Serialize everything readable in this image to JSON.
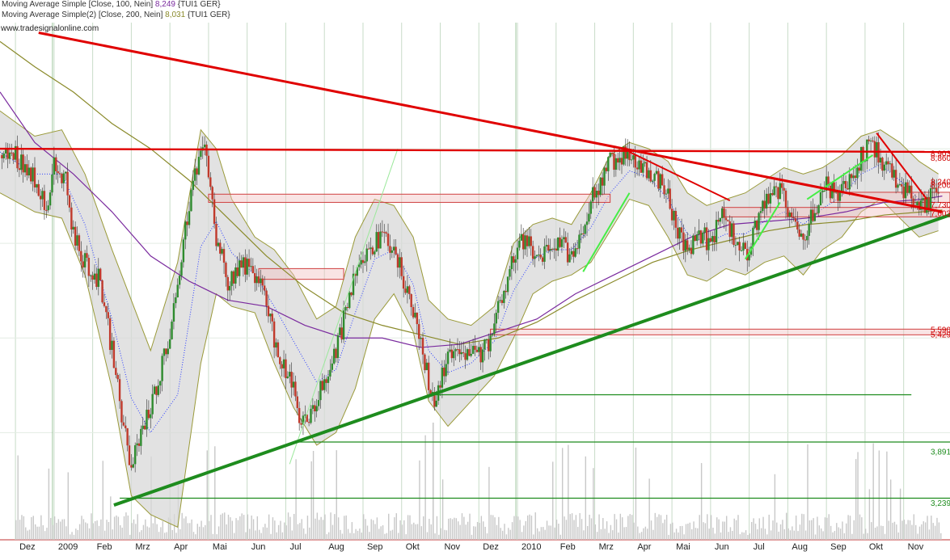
{
  "legend": {
    "ma1_prefix": "Moving Average Simple [Close, 100, Nein] ",
    "ma1_value": "8,249",
    "ma1_suffix": " {TUI1 GER}",
    "ma2_prefix": "Moving Average Simple(2) [Close, 200, Nein] ",
    "ma2_value": "8,031",
    "ma2_suffix": " {TUI1 GER}"
  },
  "source": "www.tradesignalonline.com",
  "colors": {
    "background": "#ffffff",
    "grid": "#c8dcc8",
    "candle_up": "#2e8b2e",
    "candle_down": "#c0392b",
    "bollinger_band": "#9a9a3a",
    "bollinger_fill": "#d8d8d8",
    "ma100": "#7a2a9e",
    "ma200": "#8a8a2a",
    "resistance": "#e00000",
    "support": "#1e8c1e",
    "volume": "#c8c8c8"
  },
  "chart_data": {
    "type": "candlestick",
    "symbol": "TUI1 GER",
    "x_tick_labels": [
      "Dez",
      "2009",
      "Feb",
      "Mrz",
      "Apr",
      "Mai",
      "Jun",
      "Jul",
      "Aug",
      "Sep",
      "Okt",
      "Nov",
      "Dez",
      "2010",
      "Feb",
      "Mrz",
      "Apr",
      "Mai",
      "Jun",
      "Jul",
      "Aug",
      "Sep",
      "Okt",
      "Nov"
    ],
    "x_tick_months": [
      0,
      1,
      2,
      3,
      4,
      5,
      6,
      7,
      8,
      9,
      10,
      11,
      12,
      13,
      14,
      15,
      16,
      17,
      18,
      19,
      20,
      21,
      22,
      23
    ],
    "x_range": [
      -0.4,
      24.2
    ],
    "ylim": [
      2.8,
      11.0
    ],
    "grid": true,
    "price_close": [
      [
        0.0,
        8.9
      ],
      [
        0.5,
        8.55
      ],
      [
        0.8,
        8.1
      ],
      [
        1.0,
        8.7
      ],
      [
        1.3,
        8.5
      ],
      [
        1.5,
        7.6
      ],
      [
        1.8,
        7.2
      ],
      [
        2.2,
        6.9
      ],
      [
        2.5,
        5.8
      ],
      [
        2.8,
        4.6
      ],
      [
        3.0,
        3.9
      ],
      [
        3.2,
        4.4
      ],
      [
        3.5,
        4.9
      ],
      [
        3.8,
        5.6
      ],
      [
        4.1,
        6.4
      ],
      [
        4.4,
        7.8
      ],
      [
        4.7,
        8.7
      ],
      [
        4.95,
        8.95
      ],
      [
        5.2,
        7.6
      ],
      [
        5.5,
        6.9
      ],
      [
        5.9,
        7.2
      ],
      [
        6.2,
        7.0
      ],
      [
        6.5,
        6.6
      ],
      [
        6.8,
        5.7
      ],
      [
        7.1,
        5.4
      ],
      [
        7.4,
        4.6
      ],
      [
        7.7,
        4.85
      ],
      [
        8.0,
        5.3
      ],
      [
        8.3,
        5.8
      ],
      [
        8.6,
        6.5
      ],
      [
        8.9,
        7.3
      ],
      [
        9.3,
        7.5
      ],
      [
        9.6,
        7.6
      ],
      [
        9.9,
        7.2
      ],
      [
        10.2,
        6.7
      ],
      [
        10.5,
        5.9
      ],
      [
        10.8,
        5.0
      ],
      [
        11.1,
        5.5
      ],
      [
        11.4,
        5.9
      ],
      [
        11.7,
        5.8
      ],
      [
        12.0,
        5.7
      ],
      [
        12.3,
        6.0
      ],
      [
        12.6,
        6.7
      ],
      [
        12.9,
        7.3
      ],
      [
        13.2,
        7.6
      ],
      [
        13.5,
        7.2
      ],
      [
        13.8,
        7.4
      ],
      [
        14.1,
        7.5
      ],
      [
        14.4,
        7.3
      ],
      [
        14.7,
        7.8
      ],
      [
        15.0,
        8.3
      ],
      [
        15.3,
        8.7
      ],
      [
        15.6,
        8.9
      ],
      [
        15.9,
        8.85
      ],
      [
        16.2,
        8.75
      ],
      [
        16.5,
        8.6
      ],
      [
        16.8,
        8.4
      ],
      [
        17.1,
        7.8
      ],
      [
        17.4,
        7.35
      ],
      [
        17.7,
        7.7
      ],
      [
        18.0,
        7.5
      ],
      [
        18.3,
        7.9
      ],
      [
        18.6,
        7.6
      ],
      [
        18.9,
        7.3
      ],
      [
        19.2,
        7.8
      ],
      [
        19.5,
        8.2
      ],
      [
        19.8,
        8.35
      ],
      [
        20.1,
        7.9
      ],
      [
        20.4,
        7.6
      ],
      [
        20.7,
        8.1
      ],
      [
        21.0,
        8.4
      ],
      [
        21.3,
        8.2
      ],
      [
        21.6,
        8.45
      ],
      [
        21.9,
        8.9
      ],
      [
        22.2,
        9.05
      ],
      [
        22.5,
        8.75
      ],
      [
        22.8,
        8.5
      ],
      [
        23.1,
        8.3
      ],
      [
        23.4,
        8.0
      ],
      [
        23.6,
        8.1
      ],
      [
        23.8,
        8.3
      ]
    ],
    "indicators": {
      "ma100": {
        "name": "Moving Average Simple [Close, 100, Nein]",
        "last": 8.249,
        "points": [
          [
            -0.4,
            9.9
          ],
          [
            0.5,
            9.1
          ],
          [
            1.5,
            8.6
          ],
          [
            2.5,
            8.0
          ],
          [
            3.5,
            7.3
          ],
          [
            4.5,
            6.9
          ],
          [
            5.5,
            6.6
          ],
          [
            6.5,
            6.5
          ],
          [
            7.5,
            6.2
          ],
          [
            8.5,
            6.0
          ],
          [
            9.5,
            6.0
          ],
          [
            10.5,
            5.85
          ],
          [
            11.5,
            5.9
          ],
          [
            12.5,
            6.1
          ],
          [
            13.5,
            6.3
          ],
          [
            14.5,
            6.7
          ],
          [
            15.5,
            7.0
          ],
          [
            16.5,
            7.3
          ],
          [
            17.5,
            7.6
          ],
          [
            18.5,
            7.8
          ],
          [
            19.5,
            7.85
          ],
          [
            20.5,
            7.9
          ],
          [
            21.5,
            8.0
          ],
          [
            22.5,
            8.15
          ],
          [
            23.5,
            8.2
          ],
          [
            24.0,
            8.25
          ]
        ]
      },
      "ma200": {
        "name": "Moving Average Simple(2) [Close, 200, Nein]",
        "last": 8.031,
        "points": [
          [
            -0.4,
            10.7
          ],
          [
            0.5,
            10.3
          ],
          [
            1.5,
            9.9
          ],
          [
            2.5,
            9.4
          ],
          [
            3.5,
            9.0
          ],
          [
            4.5,
            8.5
          ],
          [
            5.5,
            7.9
          ],
          [
            6.5,
            7.3
          ],
          [
            7.5,
            6.8
          ],
          [
            8.5,
            6.4
          ],
          [
            9.5,
            6.2
          ],
          [
            10.5,
            6.05
          ],
          [
            11.5,
            5.9
          ],
          [
            12.5,
            6.0
          ],
          [
            13.5,
            6.25
          ],
          [
            14.5,
            6.6
          ],
          [
            15.5,
            6.9
          ],
          [
            16.5,
            7.2
          ],
          [
            17.5,
            7.4
          ],
          [
            18.5,
            7.55
          ],
          [
            19.5,
            7.7
          ],
          [
            20.5,
            7.8
          ],
          [
            21.5,
            7.85
          ],
          [
            22.5,
            7.95
          ],
          [
            23.5,
            8.0
          ],
          [
            24.0,
            8.03
          ]
        ]
      }
    },
    "bollinger_upper": [
      [
        -0.4,
        9.6
      ],
      [
        0.5,
        9.2
      ],
      [
        1.2,
        9.3
      ],
      [
        1.8,
        8.6
      ],
      [
        2.5,
        7.4
      ],
      [
        3.0,
        6.6
      ],
      [
        3.5,
        5.8
      ],
      [
        4.2,
        7.2
      ],
      [
        4.8,
        9.3
      ],
      [
        5.2,
        9.0
      ],
      [
        5.6,
        8.2
      ],
      [
        6.2,
        7.6
      ],
      [
        6.7,
        7.4
      ],
      [
        7.2,
        7.0
      ],
      [
        7.8,
        6.3
      ],
      [
        8.3,
        6.5
      ],
      [
        8.8,
        7.6
      ],
      [
        9.3,
        8.2
      ],
      [
        9.8,
        8.1
      ],
      [
        10.3,
        7.6
      ],
      [
        10.7,
        6.6
      ],
      [
        11.2,
        6.3
      ],
      [
        11.8,
        6.2
      ],
      [
        12.4,
        6.5
      ],
      [
        12.9,
        7.5
      ],
      [
        13.4,
        7.8
      ],
      [
        13.9,
        7.9
      ],
      [
        14.4,
        7.8
      ],
      [
        14.9,
        8.3
      ],
      [
        15.4,
        8.9
      ],
      [
        15.9,
        9.1
      ],
      [
        16.4,
        9.0
      ],
      [
        16.9,
        8.8
      ],
      [
        17.4,
        8.3
      ],
      [
        17.9,
        8.1
      ],
      [
        18.4,
        8.2
      ],
      [
        18.9,
        8.3
      ],
      [
        19.4,
        8.5
      ],
      [
        19.9,
        8.7
      ],
      [
        20.4,
        8.6
      ],
      [
        20.9,
        8.7
      ],
      [
        21.4,
        8.9
      ],
      [
        21.9,
        9.2
      ],
      [
        22.4,
        9.3
      ],
      [
        22.9,
        9.1
      ],
      [
        23.4,
        8.8
      ],
      [
        23.9,
        8.6
      ]
    ],
    "bollinger_lower": [
      [
        -0.4,
        8.3
      ],
      [
        0.5,
        8.0
      ],
      [
        1.2,
        7.9
      ],
      [
        1.8,
        7.0
      ],
      [
        2.5,
        5.2
      ],
      [
        3.0,
        3.5
      ],
      [
        3.5,
        3.2
      ],
      [
        4.2,
        3.0
      ],
      [
        4.8,
        5.6
      ],
      [
        5.2,
        6.7
      ],
      [
        5.6,
        6.5
      ],
      [
        6.2,
        6.4
      ],
      [
        6.7,
        5.6
      ],
      [
        7.2,
        4.9
      ],
      [
        7.8,
        4.3
      ],
      [
        8.3,
        4.5
      ],
      [
        8.8,
        5.2
      ],
      [
        9.3,
        6.3
      ],
      [
        9.8,
        6.7
      ],
      [
        10.3,
        6.1
      ],
      [
        10.7,
        5.0
      ],
      [
        11.2,
        4.6
      ],
      [
        11.8,
        5.0
      ],
      [
        12.4,
        5.4
      ],
      [
        12.9,
        6.0
      ],
      [
        13.4,
        6.7
      ],
      [
        13.9,
        6.9
      ],
      [
        14.4,
        7.0
      ],
      [
        14.9,
        7.2
      ],
      [
        15.4,
        7.7
      ],
      [
        15.9,
        8.2
      ],
      [
        16.4,
        8.1
      ],
      [
        16.9,
        7.6
      ],
      [
        17.4,
        7.0
      ],
      [
        17.9,
        6.9
      ],
      [
        18.4,
        7.1
      ],
      [
        18.9,
        7.0
      ],
      [
        19.4,
        7.2
      ],
      [
        19.9,
        7.3
      ],
      [
        20.4,
        7.0
      ],
      [
        20.9,
        7.4
      ],
      [
        21.4,
        7.6
      ],
      [
        21.9,
        8.0
      ],
      [
        22.4,
        8.2
      ],
      [
        22.9,
        7.9
      ],
      [
        23.4,
        7.6
      ],
      [
        23.9,
        7.7
      ]
    ],
    "lines": {
      "resistance_downtrend": [
        [
          0.6,
          10.84
        ],
        [
          24.0,
          8.0
        ]
      ],
      "support_uptrend": [
        [
          2.55,
          3.35
        ],
        [
          24.2,
          7.95
        ]
      ],
      "resistance_horizontal": [
        [
          -0.4,
          9.0
        ],
        [
          24.2,
          8.95
        ]
      ],
      "minor_downtrend_1": [
        [
          15.9,
          8.95
        ],
        [
          18.5,
          8.18
        ]
      ],
      "minor_downtrend_2": [
        [
          22.3,
          9.25
        ],
        [
          23.6,
          8.2
        ]
      ],
      "green_channel_1": [
        [
          7.1,
          4.0
        ],
        [
          9.9,
          9.0
        ]
      ],
      "green_channel_2": [
        [
          14.7,
          7.05
        ],
        [
          15.9,
          8.3
        ]
      ],
      "green_channel_3": [
        [
          18.9,
          7.25
        ],
        [
          19.8,
          8.15
        ]
      ],
      "green_channel_4": [
        [
          20.5,
          8.2
        ],
        [
          22.2,
          8.9
        ]
      ],
      "support_horizontal_1": [
        [
          10.9,
          5.1
        ],
        [
          23.2,
          5.1
        ]
      ],
      "support_horizontal_2": [
        [
          7.2,
          4.35
        ],
        [
          24.2,
          4.35
        ]
      ],
      "support_horizontal_3": [
        [
          2.7,
          3.46
        ],
        [
          24.2,
          3.46
        ]
      ]
    },
    "zones": [
      {
        "from": 5.0,
        "to": 15.4,
        "low": 8.15,
        "high": 8.28
      },
      {
        "from": 6.3,
        "to": 8.5,
        "low": 6.93,
        "high": 7.1
      },
      {
        "from": 12.3,
        "to": 24.2,
        "low": 6.05,
        "high": 6.14
      },
      {
        "from": 18.3,
        "to": 24.2,
        "low": 7.92,
        "high": 8.07
      },
      {
        "from": 21.1,
        "to": 24.2,
        "low": 8.15,
        "high": 8.31
      }
    ],
    "right_axis_labels": [
      {
        "text": "8,903",
        "y": 8.93,
        "color": "red"
      },
      {
        "text": "8,860",
        "y": 8.86,
        "color": "red"
      },
      {
        "text": "8,240",
        "y": 8.48,
        "color": "red"
      },
      {
        "text": "8,200",
        "y": 8.43,
        "color": "red"
      },
      {
        "text": "7,730",
        "y": 8.12,
        "color": "red"
      },
      {
        "text": "7,603",
        "y": 7.98,
        "color": "red"
      },
      {
        "text": "5,590",
        "y": 6.14,
        "color": "red"
      },
      {
        "text": "5,429",
        "y": 6.06,
        "color": "red"
      },
      {
        "text": "3,891",
        "y": 4.2,
        "color": "green"
      },
      {
        "text": "3,239",
        "y": 3.39,
        "color": "green"
      }
    ]
  }
}
